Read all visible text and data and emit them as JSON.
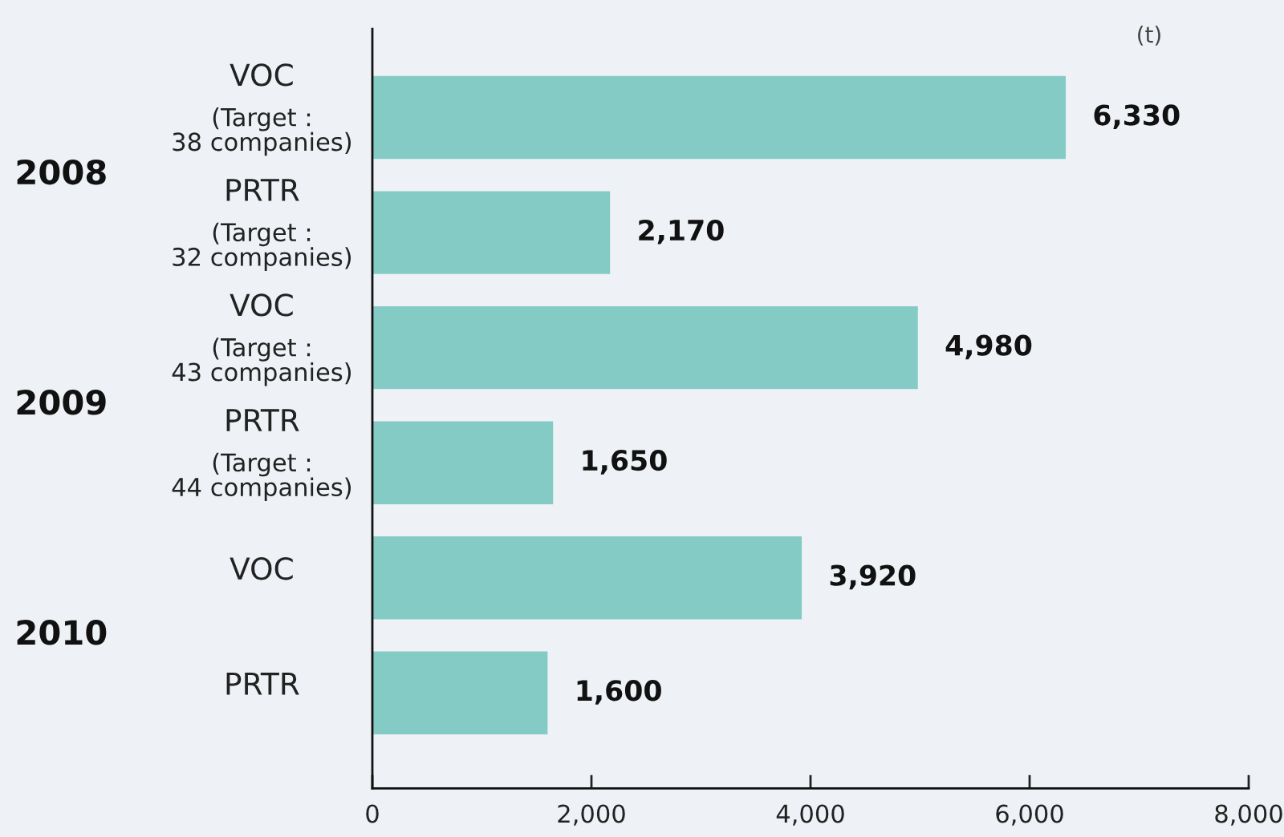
{
  "chart_data": {
    "type": "bar",
    "orientation": "horizontal",
    "categories": [
      "VOC\n(Target :\n38 companies)",
      "PRTR\n(Target :\n32 companies)",
      "VOC\n(Target :\n43 companies)",
      "PRTR\n(Target :\n44 companies)",
      "VOC",
      "PRTR"
    ],
    "values": [
      6330,
      2170,
      4980,
      1650,
      3920,
      1600
    ],
    "value_labels": [
      "6,330",
      "2,170",
      "4,980",
      "1,650",
      "3,920",
      "1,600"
    ],
    "color": "#85cbc5",
    "xlim": [
      0,
      8000
    ],
    "xticks": [
      0,
      {
        "value": 2000,
        "label": "2,000"
      },
      {
        "value": 4000,
        "label": "4,000"
      },
      {
        "value": 6000,
        "label": "6,000"
      },
      {
        "value": 8000,
        "label": "8,000"
      }
    ],
    "xlabel": "(t)",
    "annotations": [
      "2008",
      "2009",
      "2010"
    ]
  }
}
